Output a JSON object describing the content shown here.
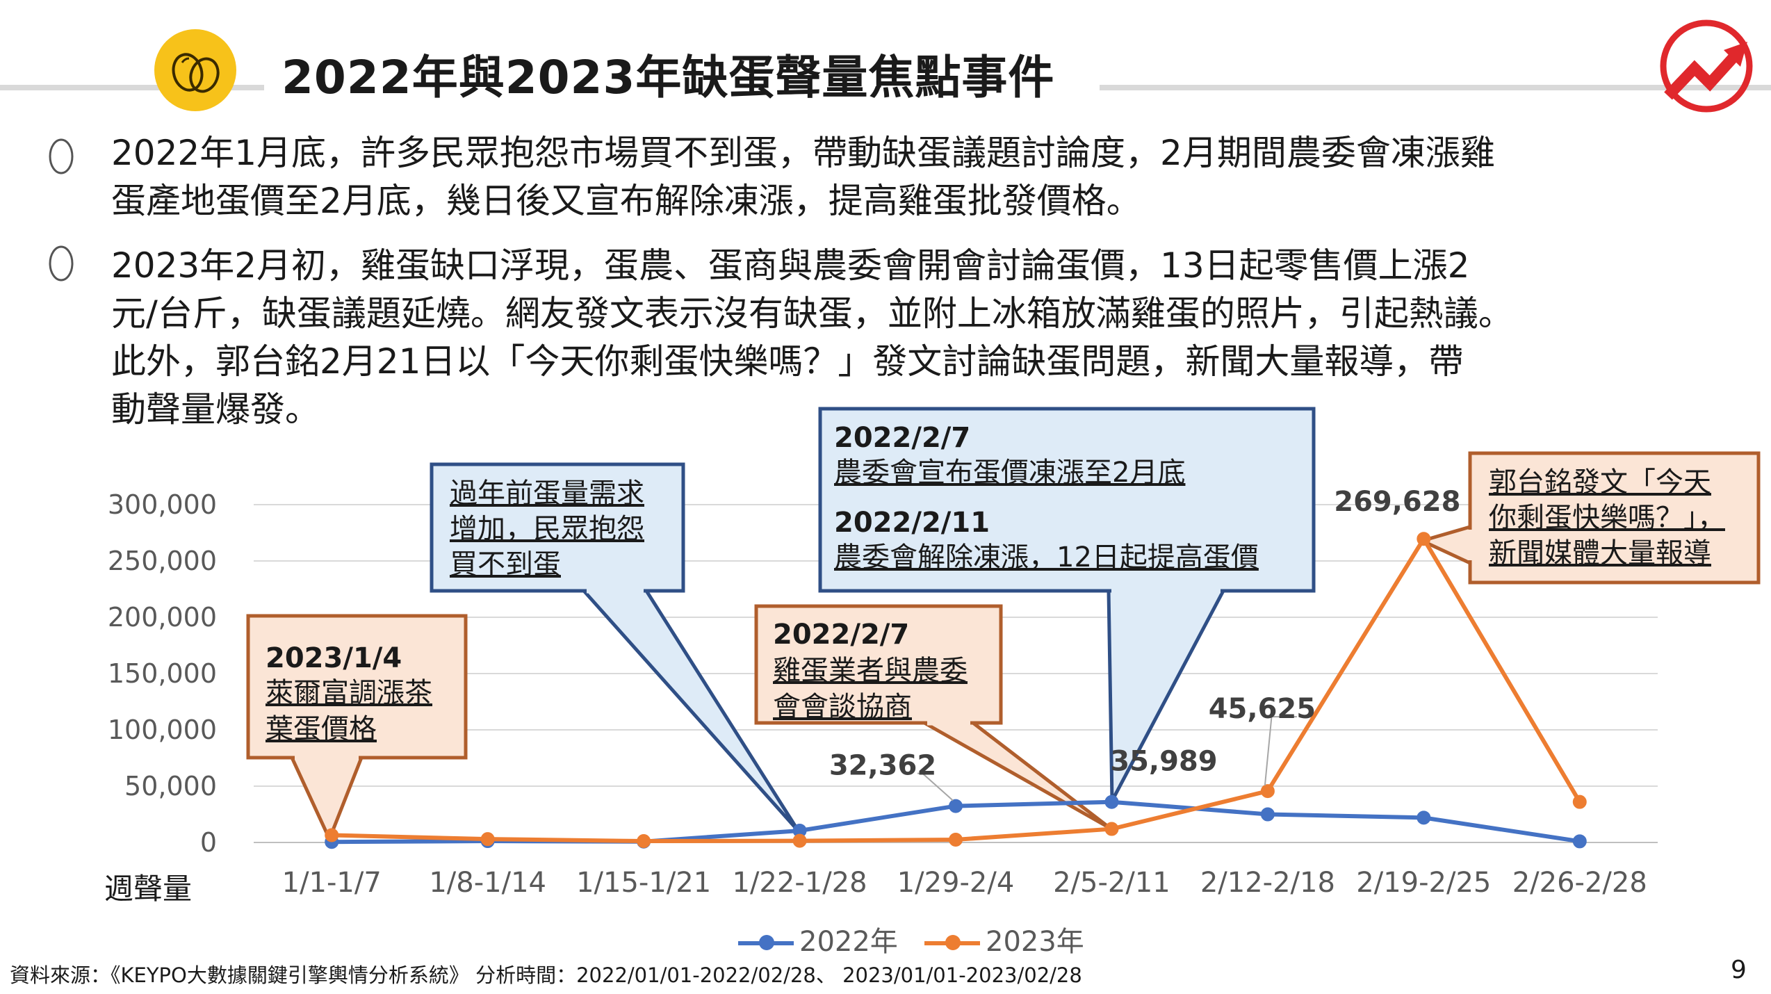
{
  "title": "2022年與2023年缺蛋聲量焦點事件",
  "bullets": [
    [
      "2022年1月底，許多民眾抱怨市場買不到蛋，帶動缺蛋議題討論度，2月期間農委會凍漲雞",
      "蛋產地蛋價至2月底，幾日後又宣布解除凍漲，提高雞蛋批發價格。"
    ],
    [
      "2023年2月初，雞蛋缺口浮現，蛋農、蛋商與農委會開會討論蛋價，13日起零售價上漲2",
      "元/台斤，缺蛋議題延燒。網友發文表示沒有缺蛋，並附上冰箱放滿雞蛋的照片，引起熱議。",
      "此外，郭台銘2月21日以「今天你剩蛋快樂嗎？」發文討論缺蛋問題，新聞大量報導，帶",
      "動聲量爆發。"
    ]
  ],
  "y_axis_title": "週聲量",
  "source_line": "資料來源：《KEYPO大數據關鍵引擎輿情分析系統》   分析時間：2022/01/01-2022/02/28、 2023/01/01-2023/02/28",
  "page_number": "9",
  "callouts": [
    {
      "lines": [
        "2023/1/4",
        "萊爾富調漲茶",
        "葉蛋價格"
      ],
      "bold_first": true,
      "color": "#b05e2c",
      "fill": "#fbe5d6"
    },
    {
      "lines": [
        "過年前蛋量需求",
        "增加，民眾抱怨",
        "買不到蛋"
      ],
      "bold_first": false,
      "color": "#2f4f86",
      "fill": "#deebf7"
    },
    {
      "lines": [
        "2022/2/7",
        "雞蛋業者與農委",
        "會會談協商"
      ],
      "bold_first": true,
      "color": "#b05e2c",
      "fill": "#fbe5d6"
    },
    {
      "lines": [
        "2022/2/7",
        "農委會宣布蛋價凍漲至2月底",
        "2022/2/11",
        "農委會解除凍漲，12日起提高蛋價"
      ],
      "bold_first": true,
      "color": "#2f4f86",
      "fill": "#deebf7"
    },
    {
      "lines": [
        "郭台銘發文「今天",
        "你剩蛋快樂嗎？」，",
        "新聞媒體大量報導"
      ],
      "bold_first": false,
      "color": "#b05e2c",
      "fill": "#fbe5d6"
    }
  ],
  "colors": {
    "series_2022": "#4472c4",
    "series_2023": "#ed7d31",
    "accent_yellow": "#f7c21a",
    "brand_red": "#e0282c"
  },
  "chart_data": {
    "type": "line",
    "categories": [
      "1/1-1/7",
      "1/8-1/14",
      "1/15-1/21",
      "1/22-1/28",
      "1/29-2/4",
      "2/5-2/11",
      "2/12-2/18",
      "2/19-2/25",
      "2/26-2/28"
    ],
    "series": [
      {
        "name": "2022年",
        "color": "#4472c4",
        "values": [
          500,
          1200,
          800,
          10500,
          32362,
          35989,
          25000,
          22000,
          1000
        ]
      },
      {
        "name": "2023年",
        "color": "#ed7d31",
        "values": [
          6500,
          3000,
          1200,
          1500,
          2500,
          12000,
          45625,
          269628,
          36000
        ]
      }
    ],
    "ylim": [
      0,
      300000
    ],
    "yticks": [
      0,
      50000,
      100000,
      150000,
      200000,
      250000,
      300000
    ],
    "ytick_labels": [
      "0",
      "50,000",
      "100,000",
      "150,000",
      "200,000",
      "250,000",
      "300,000"
    ],
    "data_labels": [
      {
        "series": 0,
        "index": 4,
        "text": "32,362"
      },
      {
        "series": 0,
        "index": 5,
        "text": "35,989"
      },
      {
        "series": 1,
        "index": 6,
        "text": "45,625"
      },
      {
        "series": 1,
        "index": 7,
        "text": "269,628"
      }
    ],
    "grid": true,
    "legend": "bottom"
  }
}
